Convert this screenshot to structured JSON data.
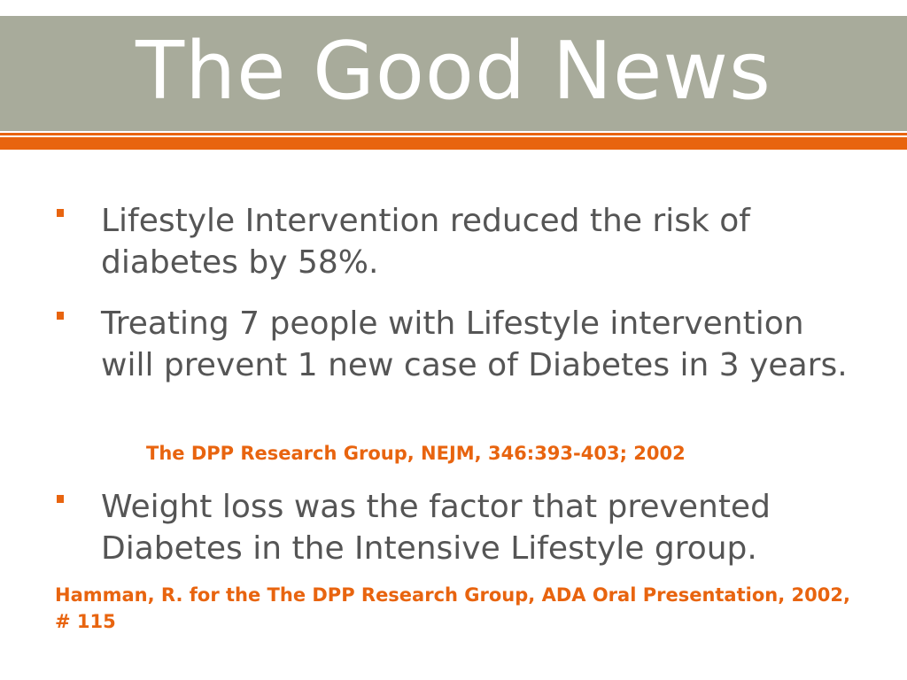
{
  "title": "The Good News",
  "bullets": [
    {
      "text": "Lifestyle Intervention reduced the risk of diabetes by 58%."
    },
    {
      "text": "Treating 7 people with Lifestyle intervention will prevent 1 new case of Diabetes in 3 years."
    },
    {
      "text": "Weight loss was the factor that prevented Diabetes in the Intensive Lifestyle group."
    }
  ],
  "citations": [
    "The DPP Research Group, NEJM, 346:393-403; 2002",
    "Hamman, R. for the The DPP Research Group, ADA Oral Presentation, 2002, # 115"
  ],
  "colors": {
    "title_band": "#a8ab9b",
    "accent": "#e8640f",
    "body_text": "#555555",
    "title_text": "#ffffff"
  }
}
